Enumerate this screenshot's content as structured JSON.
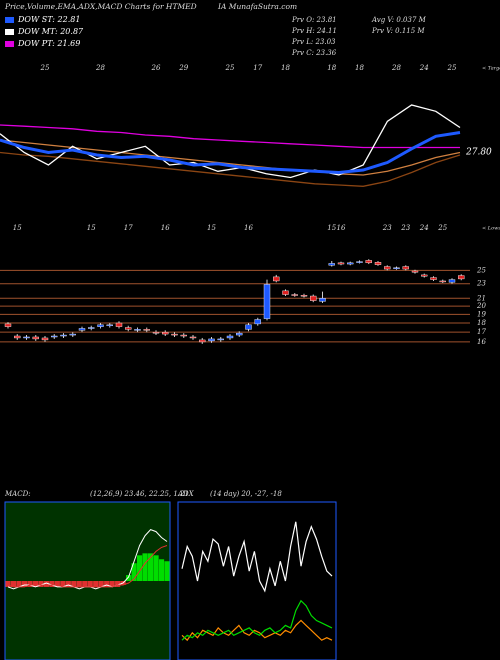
{
  "header": {
    "title": "Price,Volume,EMA,ADX,MACD Charts for HTMED",
    "title_cont": "IA MunafaSutra.com",
    "legend": [
      {
        "label": "DOW ST: 22.81",
        "color": "#1e5aff"
      },
      {
        "label": "DOW MT: 20.87",
        "color": "#ffffff"
      },
      {
        "label": "DOW PT: 21.69",
        "color": "#e000e0"
      }
    ],
    "prev": [
      "Prv  O: 23.81",
      "Prv  H: 24.11",
      "Prv  L: 23.03",
      "Prv  C: 23.36"
    ],
    "volume": [
      "Avg  V: 0.037 M",
      "Prv  V: 0.115 M"
    ]
  },
  "chart_data": [
    {
      "type": "candlestick",
      "log_scale": true,
      "up_color": "#1e5aff",
      "down_color": "#e02020",
      "tick_color": "#a0522d",
      "top_note": "< Targe",
      "bottom_note": "< Lows",
      "top_labels": [
        null,
        null,
        null,
        null,
        "25",
        null,
        null,
        null,
        null,
        null,
        "28",
        null,
        null,
        null,
        null,
        null,
        "26",
        null,
        null,
        "29",
        null,
        null,
        null,
        null,
        "25",
        null,
        null,
        "17",
        null,
        null,
        "18",
        null,
        null,
        null,
        null,
        "18",
        null,
        null,
        "18",
        null,
        null,
        null,
        "28",
        null,
        null,
        "24",
        null,
        null,
        "25",
        null
      ],
      "categories": [
        null,
        "15",
        null,
        null,
        null,
        null,
        null,
        null,
        null,
        "15",
        null,
        null,
        null,
        "17",
        null,
        null,
        null,
        "16",
        null,
        null,
        null,
        null,
        "15",
        null,
        null,
        null,
        "16",
        null,
        null,
        null,
        null,
        null,
        null,
        null,
        null,
        "15",
        "16",
        null,
        null,
        null,
        null,
        "23",
        null,
        "23",
        null,
        "24",
        null,
        "25",
        null,
        null
      ],
      "open": [
        17.9,
        16.6,
        16.4,
        16.5,
        16.4,
        16.5,
        16.6,
        16.7,
        17.2,
        17.4,
        17.6,
        17.7,
        18.0,
        17.5,
        17.2,
        17.3,
        17.0,
        17.0,
        16.8,
        16.7,
        16.5,
        16.2,
        16.1,
        16.2,
        16.4,
        16.7,
        17.3,
        17.9,
        18.5,
        24.0,
        22.0,
        21.5,
        21.4,
        21.3,
        20.6,
        25.8,
        26.2,
        26.0,
        26.3,
        26.6,
        26.3,
        25.6,
        25.3,
        25.6,
        24.9,
        24.3,
        23.9,
        23.4,
        23.2,
        24.2
      ],
      "high": [
        18.1,
        16.8,
        16.7,
        16.7,
        16.6,
        16.8,
        16.9,
        17.0,
        17.6,
        17.7,
        18.0,
        18.0,
        18.2,
        17.7,
        17.5,
        17.5,
        17.2,
        17.2,
        17.0,
        16.9,
        16.7,
        16.4,
        16.5,
        16.5,
        16.8,
        17.1,
        18.0,
        18.6,
        23.6,
        24.3,
        22.2,
        21.7,
        21.6,
        21.5,
        21.9,
        26.5,
        26.4,
        26.4,
        26.6,
        26.8,
        26.5,
        25.8,
        25.6,
        25.8,
        25.1,
        24.5,
        24.1,
        23.6,
        23.8,
        24.4
      ],
      "low": [
        17.4,
        16.2,
        16.2,
        16.1,
        16.0,
        16.3,
        16.4,
        16.5,
        17.0,
        17.2,
        17.4,
        17.5,
        17.4,
        17.1,
        17.0,
        17.0,
        16.7,
        16.6,
        16.5,
        16.4,
        16.2,
        15.8,
        15.9,
        16.0,
        16.2,
        16.5,
        17.1,
        17.7,
        18.3,
        23.2,
        21.3,
        21.2,
        21.1,
        20.5,
        20.4,
        25.6,
        25.8,
        25.8,
        26.1,
        26.0,
        25.7,
        25.0,
        25.1,
        25.0,
        24.5,
        23.9,
        23.4,
        23.1,
        23.0,
        23.5
      ],
      "close": [
        17.6,
        16.4,
        16.5,
        16.3,
        16.2,
        16.6,
        16.7,
        16.8,
        17.4,
        17.5,
        17.8,
        17.8,
        17.6,
        17.3,
        17.3,
        17.2,
        16.9,
        16.8,
        16.7,
        16.6,
        16.4,
        16.0,
        16.3,
        16.3,
        16.6,
        16.9,
        17.8,
        18.4,
        22.9,
        23.4,
        21.5,
        21.4,
        21.3,
        20.7,
        21.0,
        26.1,
        26.0,
        26.2,
        26.4,
        26.2,
        25.9,
        25.2,
        25.4,
        25.2,
        24.7,
        24.1,
        23.6,
        23.3,
        23.6,
        23.7
      ],
      "ylim": [
        15.5,
        26.5
      ],
      "yticks": [
        25,
        23,
        21,
        20,
        19,
        18,
        17,
        16
      ]
    },
    {
      "type": "line",
      "ylim": [
        20,
        32
      ],
      "end_label": "27.80",
      "end_color": "#ffffff",
      "series": [
        {
          "color": "#8b4513",
          "values": [
            27.0,
            26.8,
            26.7,
            26.5,
            26.3,
            26.1,
            25.9,
            25.7,
            25.5,
            25.3,
            25.1,
            24.9,
            24.7,
            24.5,
            24.4,
            24.3,
            24.7,
            25.4,
            26.2,
            26.8
          ]
        },
        {
          "color": "#d08040",
          "values": [
            28.0,
            27.8,
            27.6,
            27.4,
            27.2,
            27.0,
            26.8,
            26.6,
            26.4,
            26.2,
            26.0,
            25.8,
            25.6,
            25.5,
            25.3,
            25.2,
            25.5,
            26.0,
            26.6,
            27.0
          ]
        },
        {
          "color": "#e000e0",
          "values": [
            29.2,
            29.1,
            29.0,
            28.9,
            28.7,
            28.6,
            28.4,
            28.3,
            28.1,
            28.0,
            27.9,
            27.8,
            27.7,
            27.6,
            27.5,
            27.4,
            27.4,
            27.4,
            27.4,
            27.4
          ]
        },
        {
          "color": "#ffffff",
          "values": [
            28.5,
            27.0,
            26.0,
            27.5,
            26.5,
            27.0,
            27.5,
            26.0,
            26.2,
            25.5,
            25.8,
            25.3,
            25.0,
            25.6,
            25.2,
            26.0,
            29.5,
            30.8,
            30.3,
            29.0
          ]
        },
        {
          "color": "#1e5aff",
          "values": [
            28.0,
            27.4,
            27.0,
            27.2,
            26.8,
            26.6,
            26.7,
            26.4,
            26.0,
            26.1,
            25.8,
            25.7,
            25.6,
            25.5,
            25.4,
            25.6,
            26.2,
            27.3,
            28.3,
            28.6
          ]
        }
      ]
    },
    {
      "type": "macd",
      "title": "MACD:",
      "params": "(12,26,9) 23.46, 22.25, 1.21",
      "ylim": [
        -4,
        4
      ],
      "background": "#003300",
      "histogram": {
        "up_color": "#00dd00",
        "down_color": "#e03030",
        "values": [
          -0.3,
          -0.3,
          -0.3,
          -0.3,
          -0.3,
          -0.3,
          -0.3,
          -0.3,
          -0.3,
          -0.3,
          -0.3,
          -0.3,
          -0.3,
          -0.3,
          -0.3,
          -0.3,
          -0.3,
          -0.3,
          -0.3,
          -0.3,
          -0.3,
          -0.2,
          0.3,
          0.9,
          1.3,
          1.4,
          1.4,
          1.3,
          1.1,
          1.0
        ]
      },
      "series": [
        {
          "color": "#ffffff",
          "values": [
            -0.3,
            -0.4,
            -0.3,
            -0.2,
            -0.2,
            -0.3,
            -0.2,
            -0.1,
            -0.2,
            -0.3,
            -0.3,
            -0.2,
            -0.3,
            -0.4,
            -0.3,
            -0.3,
            -0.4,
            -0.3,
            -0.2,
            -0.3,
            -0.2,
            -0.1,
            0.2,
            1.0,
            1.8,
            2.3,
            2.6,
            2.5,
            2.2,
            2.0
          ]
        },
        {
          "color": "#e03030",
          "values": [
            -0.2,
            -0.3,
            -0.3,
            -0.3,
            -0.2,
            -0.2,
            -0.2,
            -0.2,
            -0.2,
            -0.2,
            -0.3,
            -0.3,
            -0.3,
            -0.3,
            -0.3,
            -0.3,
            -0.3,
            -0.3,
            -0.3,
            -0.3,
            -0.2,
            -0.2,
            -0.1,
            0.1,
            0.5,
            0.9,
            1.2,
            1.5,
            1.7,
            1.8
          ]
        }
      ]
    },
    {
      "type": "adx",
      "title": "ADX",
      "params": "(14 day) 20, -27, -18",
      "ylim": [
        0,
        60
      ],
      "background": "#000000",
      "series": [
        {
          "color": "#ffffff",
          "values": [
            35,
            44,
            40,
            30,
            42,
            38,
            47,
            45,
            36,
            44,
            32,
            40,
            46,
            34,
            42,
            30,
            26,
            35,
            28,
            38,
            30,
            44,
            54,
            36,
            46,
            52,
            47,
            40,
            34,
            32
          ]
        },
        {
          "color": "#ff8c00",
          "values": [
            8,
            6,
            9,
            7,
            10,
            9,
            8,
            11,
            9,
            8,
            10,
            12,
            9,
            8,
            10,
            9,
            7,
            8,
            9,
            8,
            10,
            9,
            12,
            14,
            12,
            10,
            8,
            6,
            7,
            6
          ]
        },
        {
          "color": "#00dd00",
          "values": [
            6,
            8,
            7,
            9,
            8,
            10,
            9,
            8,
            9,
            10,
            8,
            9,
            10,
            11,
            9,
            8,
            10,
            11,
            9,
            10,
            12,
            11,
            18,
            22,
            20,
            16,
            14,
            13,
            12,
            11
          ]
        }
      ]
    }
  ]
}
